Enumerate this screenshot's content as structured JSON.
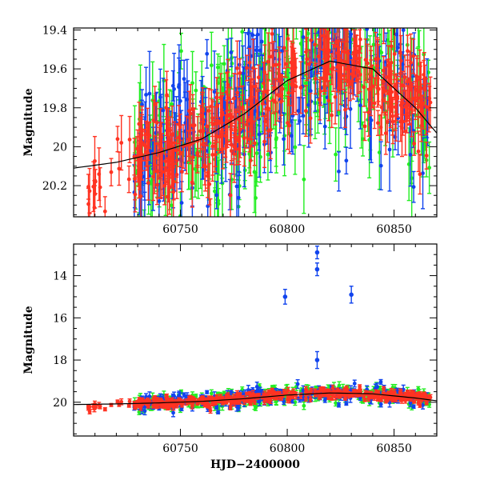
{
  "chart_data": [
    {
      "type": "scatter",
      "panel": "top",
      "xlabel": "",
      "ylabel": "Magnitude",
      "xlim": [
        60700,
        60870
      ],
      "ylim": [
        20.36,
        19.39
      ],
      "y_inverted": true,
      "x_ticks": [
        60750,
        60800,
        60850
      ],
      "y_ticks": [
        19.4,
        19.6,
        19.8,
        20,
        20.2
      ],
      "series_colors": [
        "#22ee22",
        "#1144ee",
        "#ff3322"
      ],
      "trend_curve": {
        "x": [
          60700,
          60720,
          60740,
          60760,
          60780,
          60800,
          60820,
          60840,
          60860,
          60870
        ],
        "y": [
          20.11,
          20.08,
          20.03,
          19.96,
          19.83,
          19.66,
          19.56,
          19.6,
          19.8,
          19.93
        ]
      }
    },
    {
      "type": "scatter",
      "panel": "bottom",
      "xlabel": "HJD−2400000",
      "ylabel": "Magnitude",
      "xlim": [
        60700,
        60870
      ],
      "ylim": [
        21.6,
        12.5
      ],
      "y_inverted": true,
      "x_ticks": [
        60750,
        60800,
        60850
      ],
      "y_ticks": [
        14,
        16,
        18,
        20
      ],
      "series_colors": [
        "#22ee22",
        "#1144ee",
        "#ff3322"
      ],
      "outliers": [
        {
          "x": 60799,
          "y": 15.0,
          "err": 0.35
        },
        {
          "x": 60814,
          "y": 12.9,
          "err": 0.3
        },
        {
          "x": 60814,
          "y": 13.7,
          "err": 0.3
        },
        {
          "x": 60814,
          "y": 18.0,
          "err": 0.4
        },
        {
          "x": 60830,
          "y": 14.9,
          "err": 0.4
        }
      ]
    }
  ]
}
